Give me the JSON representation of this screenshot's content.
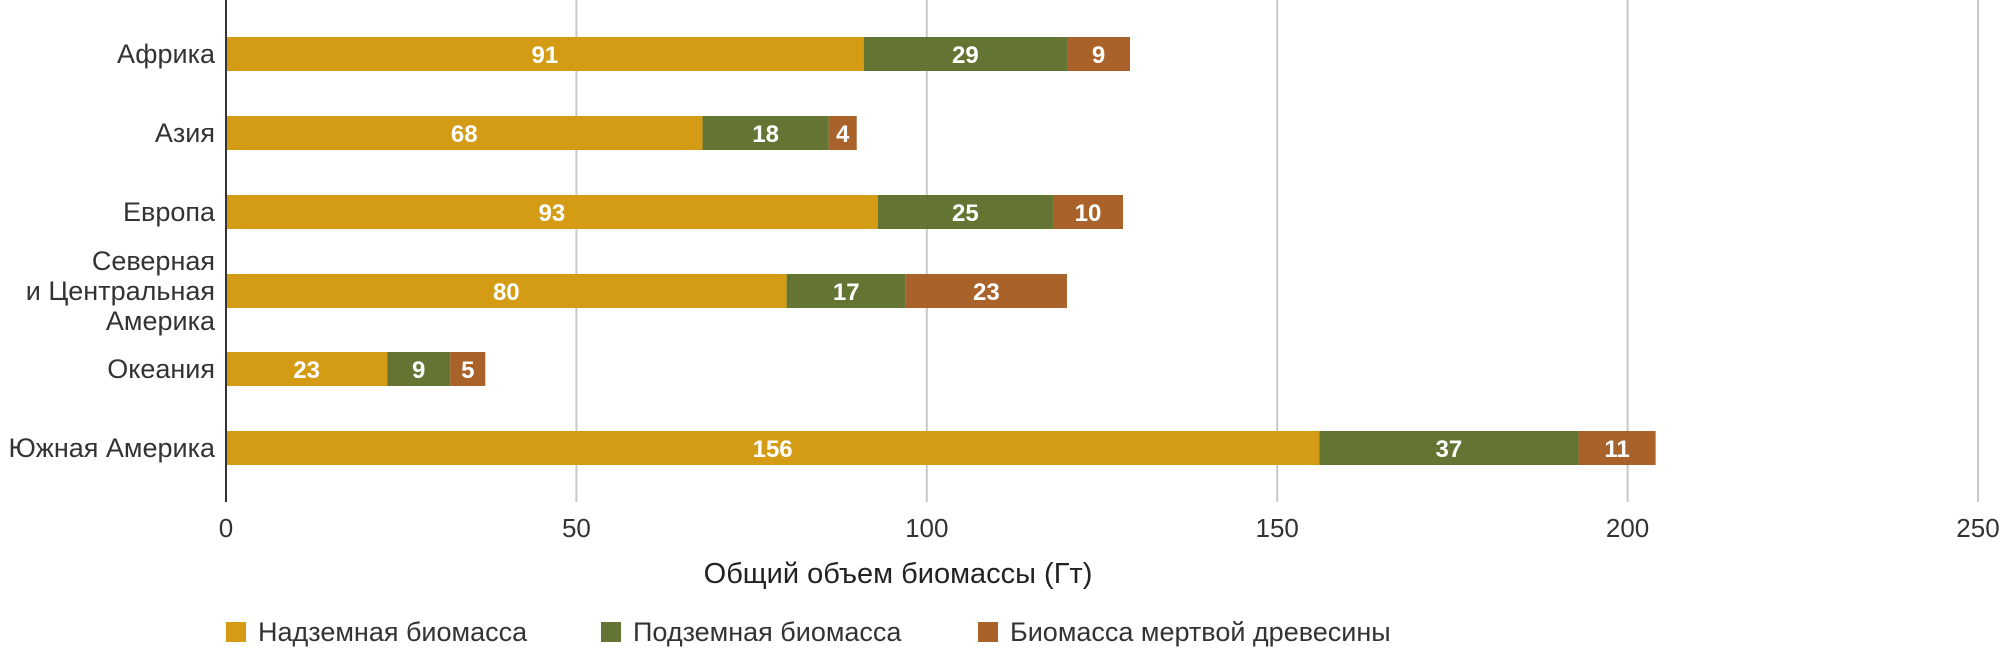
{
  "chart_data": {
    "type": "bar",
    "orientation": "horizontal",
    "stacked": true,
    "categories": [
      [
        "Африка"
      ],
      [
        "Азия"
      ],
      [
        "Европа"
      ],
      [
        "Северная",
        "и Центральная",
        "Америка"
      ],
      [
        "Океания"
      ],
      [
        "Южная Америка"
      ]
    ],
    "series": [
      {
        "name": "Надземная биомасса",
        "color": "#D49C14",
        "values": [
          91,
          68,
          93,
          80,
          23,
          156
        ]
      },
      {
        "name": "Подземная биомасса",
        "color": "#647432",
        "values": [
          29,
          18,
          25,
          17,
          9,
          37
        ]
      },
      {
        "name": "Биомасса мертвой древесины",
        "color": "#A9632A",
        "values": [
          9,
          4,
          10,
          23,
          5,
          11
        ]
      }
    ],
    "xlabel": "Общий объем биомассы (Гт)",
    "xlim": [
      0,
      250
    ],
    "xticks": [
      0,
      50,
      100,
      150,
      200,
      250
    ],
    "grid": "vertical",
    "legend_position": "bottom"
  }
}
